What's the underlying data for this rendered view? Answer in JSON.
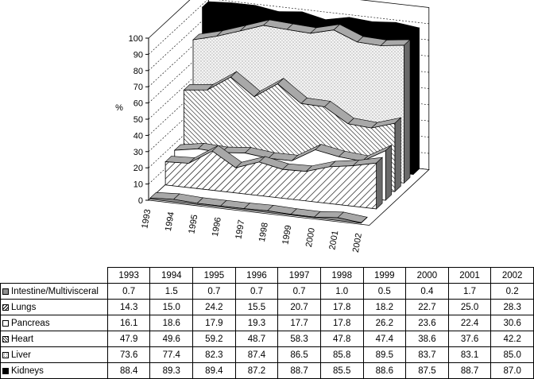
{
  "chart_data": {
    "type": "area",
    "subtype": "3d-stacked-depth",
    "ylabel": "%",
    "ylim": [
      0,
      100
    ],
    "yticks": [
      0,
      10,
      20,
      30,
      40,
      50,
      60,
      70,
      80,
      90,
      100
    ],
    "grid": true,
    "categories": [
      "1993",
      "1994",
      "1995",
      "1996",
      "1997",
      "1998",
      "1999",
      "2000",
      "2001",
      "2002"
    ],
    "series": [
      {
        "name": "Intestine/Multivisceral",
        "values": [
          0.7,
          1.5,
          0.7,
          0.7,
          0.7,
          1.0,
          0.5,
          0.4,
          1.7,
          0.2
        ],
        "color": "#909090",
        "pattern": "solid-gray"
      },
      {
        "name": "Lungs",
        "values": [
          14.3,
          15.0,
          24.2,
          15.5,
          20.7,
          17.8,
          18.2,
          22.7,
          25.0,
          28.3
        ],
        "color": "#ffffff",
        "pattern": "diagonal-hatch"
      },
      {
        "name": "Pancreas",
        "values": [
          16.1,
          18.6,
          17.9,
          19.3,
          17.7,
          17.8,
          26.2,
          23.6,
          22.4,
          30.6
        ],
        "color": "#ffffff",
        "pattern": "white"
      },
      {
        "name": "Heart",
        "values": [
          47.9,
          49.6,
          59.2,
          48.7,
          58.3,
          47.8,
          47.4,
          38.6,
          37.6,
          42.2
        ],
        "color": "#ffffff",
        "pattern": "dense-diagonal-hatch"
      },
      {
        "name": "Liver",
        "values": [
          73.6,
          77.4,
          82.3,
          87.4,
          86.5,
          85.8,
          89.5,
          83.7,
          83.1,
          85.0
        ],
        "color": "#e8e8e8",
        "pattern": "dotted"
      },
      {
        "name": "Kidneys",
        "values": [
          88.4,
          89.3,
          89.4,
          87.2,
          88.7,
          85.5,
          88.6,
          87.5,
          88.7,
          87.0
        ],
        "color": "#000000",
        "pattern": "solid-black"
      }
    ],
    "legend": "table-below"
  }
}
